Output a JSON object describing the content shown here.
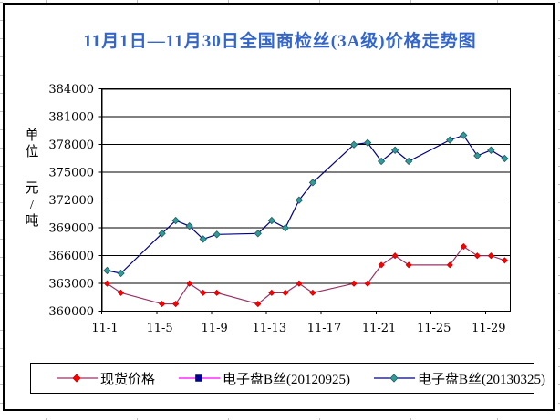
{
  "chart_title": "11月1日—11月30日全国商检丝(3A级)价格走势图",
  "colors": {
    "title": "#3366CC",
    "axis": "#000000",
    "gridline": "#000000",
    "background": "#FFFFFF",
    "spreadsheet_gridline": "#C0C0C0"
  },
  "y_axis_unit": {
    "text": "单位 元/吨",
    "vertical_chars": [
      "单",
      "位",
      "",
      "元",
      "/",
      "吨"
    ]
  },
  "chart_data": {
    "type": "line",
    "title": "11月1日—11月30日全国商检丝(3A级)价格走势图",
    "xlabel": "",
    "ylabel": "单位 元/吨",
    "ylim": [
      360000,
      384000
    ],
    "ytick_interval": 3000,
    "yticks": [
      384000,
      381000,
      378000,
      375000,
      372000,
      369000,
      366000,
      363000,
      360000
    ],
    "xtick_labels": [
      "11-1",
      "11-5",
      "11-9",
      "11-13",
      "11-17",
      "11-21",
      "11-25",
      "11-29"
    ],
    "x_axis_total_days": 30,
    "grid": "horizontal",
    "legend_position": "bottom",
    "x_categories": [
      "11-1",
      "11-2",
      "11-5",
      "11-6",
      "11-7",
      "11-8",
      "11-9",
      "11-12",
      "11-13",
      "11-14",
      "11-15",
      "11-16",
      "11-19",
      "11-20",
      "11-21",
      "11-22",
      "11-23",
      "11-26",
      "11-27",
      "11-28",
      "11-29",
      "11-30"
    ],
    "x_day_index": [
      0,
      1,
      4,
      5,
      6,
      7,
      8,
      11,
      12,
      13,
      14,
      15,
      18,
      19,
      20,
      21,
      22,
      25,
      26,
      27,
      28,
      29
    ],
    "series": [
      {
        "name": "现货价格",
        "line_color": "#993366",
        "marker": "diamond",
        "marker_color": "#FF0000",
        "marker_edge": "#CC0000",
        "values": [
          363000,
          362000,
          360800,
          360800,
          363000,
          362000,
          362000,
          360800,
          362000,
          362000,
          363000,
          362000,
          363000,
          363000,
          365000,
          366000,
          365000,
          365000,
          367000,
          366000,
          366000,
          365500
        ]
      },
      {
        "name": "电子盘B丝(20120925)",
        "line_color": "#FF00FF",
        "marker": "square",
        "marker_color": "#000099",
        "marker_edge": "#000066",
        "values": []
      },
      {
        "name": "电子盘B丝(20130325)",
        "line_color": "#000080",
        "marker": "diamond",
        "marker_color": "#339999",
        "marker_edge": "#1F5F5F",
        "values": [
          364400,
          364100,
          368400,
          369800,
          369200,
          367800,
          368300,
          368400,
          369800,
          369000,
          372000,
          373900,
          378000,
          378200,
          376200,
          377400,
          376200,
          378500,
          379000,
          376800,
          377400,
          376500
        ]
      }
    ]
  }
}
